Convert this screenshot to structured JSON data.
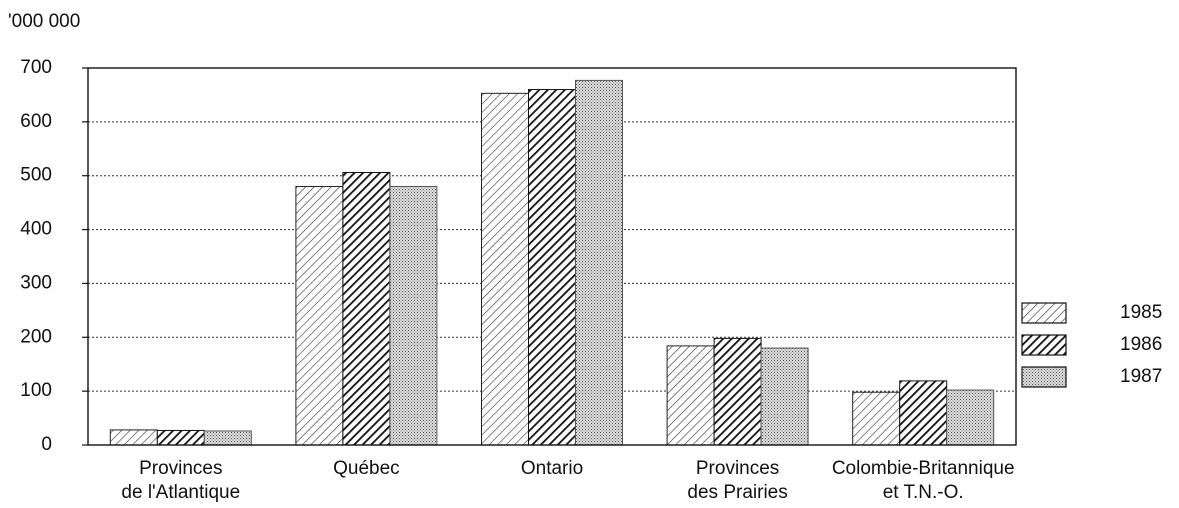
{
  "chart_data": {
    "type": "bar",
    "y_label": "'000 000",
    "categories": [
      [
        "Provinces",
        "de l'Atlantique"
      ],
      [
        "Québec"
      ],
      [
        "Ontario"
      ],
      [
        "Provinces",
        "des Prairies"
      ],
      [
        "Colombie-Britannique",
        "et T.N.-O."
      ]
    ],
    "series": [
      {
        "name": "1985",
        "color": "#222",
        "pattern": "hatch-light",
        "values": [
          28,
          480,
          653,
          184,
          98
        ]
      },
      {
        "name": "1986",
        "color": "#111",
        "pattern": "hatch-dark",
        "values": [
          27,
          506,
          660,
          198,
          119
        ]
      },
      {
        "name": "1987",
        "color": "#555",
        "pattern": "dots",
        "values": [
          26,
          480,
          677,
          180,
          102
        ]
      }
    ],
    "ylim": [
      0,
      700
    ],
    "yticks": [
      0,
      100,
      200,
      300,
      400,
      500,
      600,
      700
    ],
    "grid": true,
    "legend": "right"
  }
}
